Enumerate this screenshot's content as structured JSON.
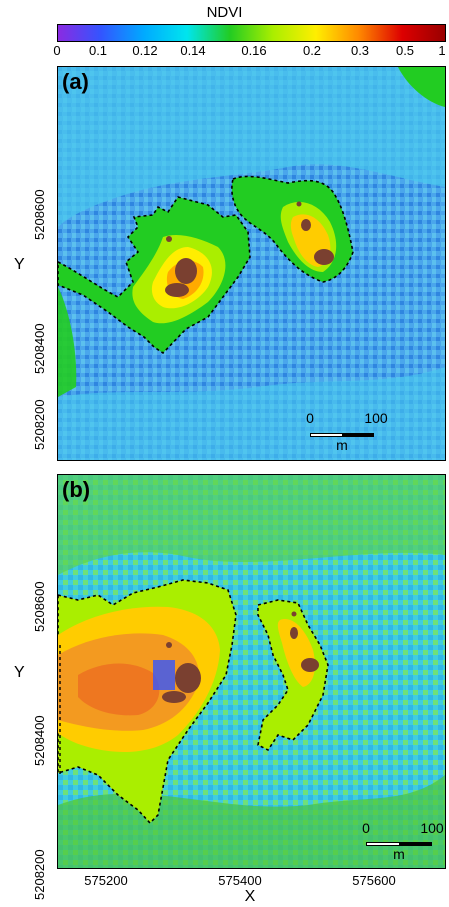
{
  "colorbar": {
    "title": "NDVI",
    "ticks": [
      "0",
      "0.1",
      "0.12",
      "0.14",
      "0.16",
      "0.2",
      "0.3",
      "0.5",
      "1"
    ],
    "stops": [
      "#8a2be2",
      "#3355ff",
      "#00aaff",
      "#00e5ee",
      "#22cc22",
      "#aaee00",
      "#ffee00",
      "#ff8800",
      "#dd0000",
      "#990000"
    ]
  },
  "panels": [
    {
      "label": "(a)",
      "background": "#3a9ae8"
    },
    {
      "label": "(b)",
      "background": "#39c6e8"
    }
  ],
  "axes": {
    "ylabel": "Y",
    "xlabel": "X",
    "yticks": [
      "5208600",
      "5208400",
      "5208200"
    ],
    "xticks": [
      "575200",
      "575400",
      "575600"
    ]
  },
  "scalebar": {
    "start": "0",
    "end": "100",
    "unit": "m"
  },
  "legend_colors": {
    "boundary": "#000000",
    "feature": "#7a4030"
  }
}
